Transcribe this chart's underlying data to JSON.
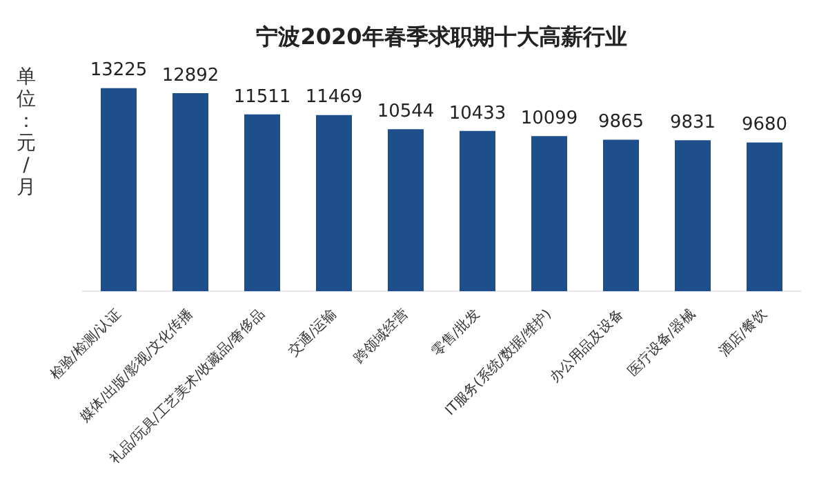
{
  "chart_data": {
    "type": "bar",
    "title": "宁波2020年春季求职期十大高薪行业",
    "ylabel": "单位：元/月",
    "categories": [
      "检验/检测/认证",
      "媒体/出版/影视/文化传播",
      "礼品/玩具/工艺美术/收藏品/奢侈品",
      "交通/运输",
      "跨领域经营",
      "零售/批发",
      "IT服务(系统/数据/维护)",
      "办公用品及设备",
      "医疗设备/器械",
      "酒店/餐饮"
    ],
    "values": [
      13225,
      12892,
      11511,
      11469,
      10544,
      10433,
      10099,
      9865,
      9831,
      9680
    ],
    "color": "#1f4e8c",
    "data_labels": true,
    "grid": false,
    "legend": false
  }
}
